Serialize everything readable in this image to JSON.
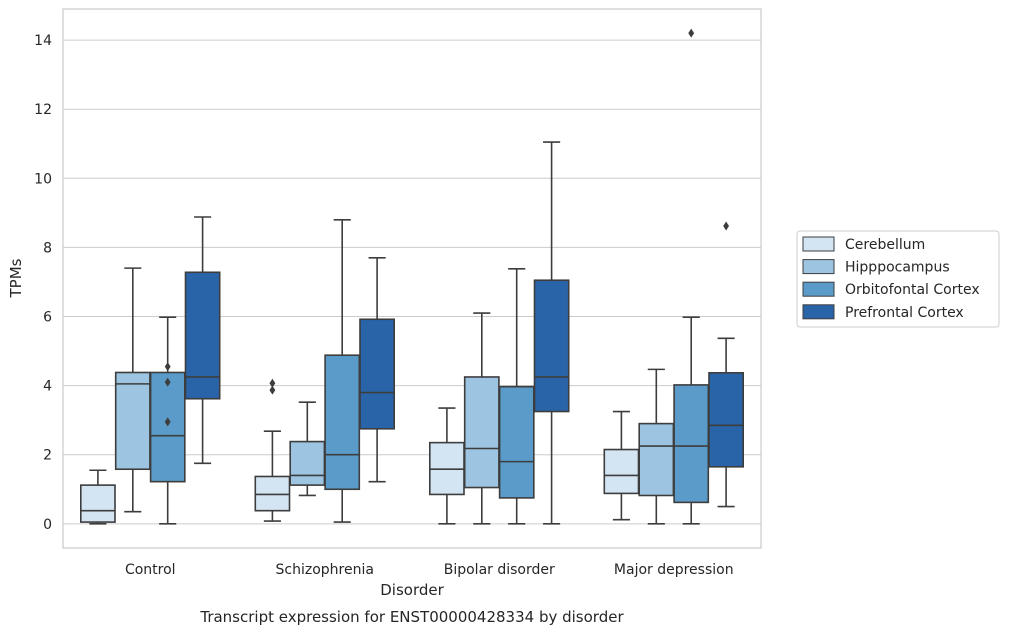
{
  "chart_data": {
    "type": "box",
    "title": "Transcript expression for ENST00000428334 by disorder",
    "xlabel": "Disorder",
    "ylabel": "TPMs",
    "ylim": [
      -0.7,
      14.9
    ],
    "yticks": [
      0,
      2,
      4,
      6,
      8,
      10,
      12,
      14
    ],
    "grid": true,
    "legend_position": "right",
    "categories": [
      "Control",
      "Schizophrenia",
      "Bipolar disorder",
      "Major depression"
    ],
    "series": [
      {
        "name": "Cerebellum",
        "color": "#d3e4f3",
        "boxes": [
          {
            "whislo": 0.0,
            "q1": 0.05,
            "med": 0.38,
            "q3": 1.12,
            "whishi": 1.55,
            "fliers": []
          },
          {
            "whislo": 0.08,
            "q1": 0.38,
            "med": 0.85,
            "q3": 1.37,
            "whishi": 2.68,
            "fliers": [
              3.87,
              4.07
            ]
          },
          {
            "whislo": 0.0,
            "q1": 0.85,
            "med": 1.58,
            "q3": 2.35,
            "whishi": 3.35,
            "fliers": []
          },
          {
            "whislo": 0.12,
            "q1": 0.88,
            "med": 1.4,
            "q3": 2.15,
            "whishi": 3.25,
            "fliers": []
          }
        ]
      },
      {
        "name": "Hipppocampus",
        "color": "#9dc4e0",
        "boxes": [
          {
            "whislo": 0.35,
            "q1": 1.58,
            "med": 4.05,
            "q3": 4.38,
            "whishi": 7.4,
            "fliers": []
          },
          {
            "whislo": 0.82,
            "q1": 1.12,
            "med": 1.4,
            "q3": 2.38,
            "whishi": 3.52,
            "fliers": []
          },
          {
            "whislo": 0.0,
            "q1": 1.05,
            "med": 2.18,
            "q3": 4.25,
            "whishi": 6.1,
            "fliers": []
          },
          {
            "whislo": 0.0,
            "q1": 0.82,
            "med": 2.25,
            "q3": 2.9,
            "whishi": 4.47,
            "fliers": []
          }
        ]
      },
      {
        "name": "Orbitofontal Cortex",
        "color": "#5a9bc9",
        "boxes": [
          {
            "whislo": 0.0,
            "q1": 1.22,
            "med": 2.55,
            "q3": 4.38,
            "whishi": 5.98,
            "fliers": [
              2.95,
              4.1,
              4.55
            ]
          },
          {
            "whislo": 0.05,
            "q1": 1.0,
            "med": 2.0,
            "q3": 4.88,
            "whishi": 8.8,
            "fliers": []
          },
          {
            "whislo": 0.0,
            "q1": 0.75,
            "med": 1.8,
            "q3": 3.97,
            "whishi": 7.38,
            "fliers": []
          },
          {
            "whislo": 0.0,
            "q1": 0.62,
            "med": 2.25,
            "q3": 4.02,
            "whishi": 5.98,
            "fliers": [
              14.2
            ]
          }
        ]
      },
      {
        "name": "Prefrontal Cortex",
        "color": "#2a64a8",
        "boxes": [
          {
            "whislo": 1.75,
            "q1": 3.62,
            "med": 4.25,
            "q3": 7.28,
            "whishi": 8.88,
            "fliers": []
          },
          {
            "whislo": 1.22,
            "q1": 2.75,
            "med": 3.8,
            "q3": 5.92,
            "whishi": 7.7,
            "fliers": []
          },
          {
            "whislo": 0.0,
            "q1": 3.25,
            "med": 4.25,
            "q3": 7.05,
            "whishi": 11.05,
            "fliers": []
          },
          {
            "whislo": 0.5,
            "q1": 1.65,
            "med": 2.85,
            "q3": 4.37,
            "whishi": 5.37,
            "fliers": [
              8.62
            ]
          }
        ]
      }
    ]
  }
}
